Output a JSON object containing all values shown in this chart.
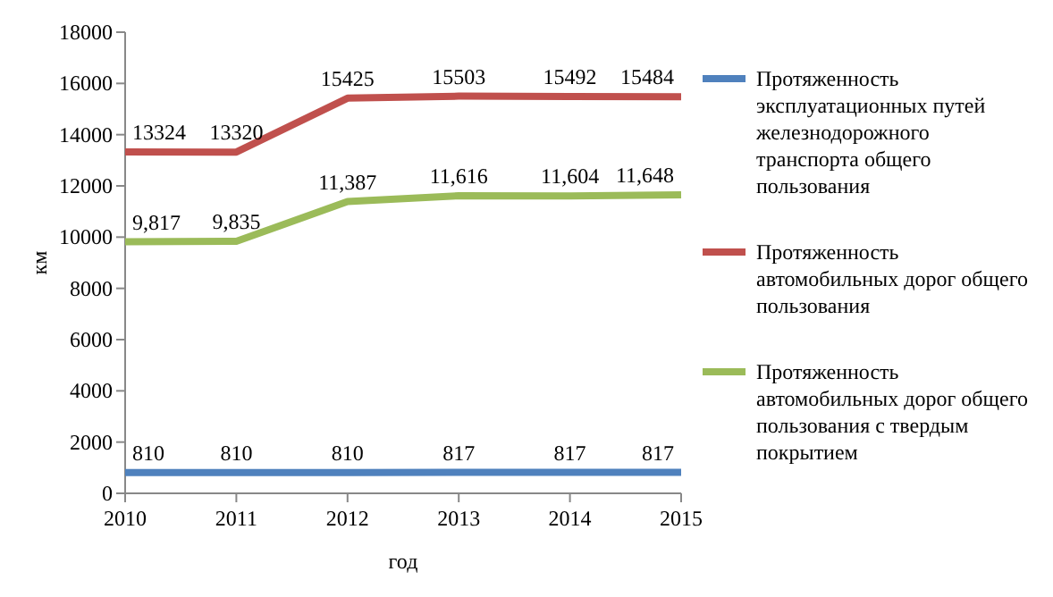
{
  "chart_data": {
    "type": "line",
    "xlabel": "год",
    "ylabel": "км",
    "x": [
      2010,
      2011,
      2012,
      2013,
      2014,
      2015
    ],
    "xlim": [
      2010,
      2015
    ],
    "xticks": [
      2010,
      2011,
      2012,
      2013,
      2014,
      2015
    ],
    "ylim": [
      0,
      18000
    ],
    "yticks": [
      0,
      2000,
      4000,
      6000,
      8000,
      10000,
      12000,
      14000,
      16000,
      18000
    ],
    "grid": false,
    "legend": "right",
    "marker": "none",
    "series": [
      {
        "name": "Протяженность эксплуатационных путей железнодорожного транспорта общего пользования",
        "color": "#4f81bd",
        "values": [
          810,
          810,
          810,
          817,
          817,
          817
        ],
        "value_labels": [
          "810",
          "810",
          "810",
          "817",
          "817",
          "817"
        ]
      },
      {
        "name": "Протяженность автомобильных дорог общего пользования",
        "color": "#c0504d",
        "values": [
          13324,
          13320,
          15425,
          15503,
          15492,
          15484
        ],
        "value_labels": [
          "13324",
          "13320",
          "15425",
          "15503",
          "15492",
          "15484"
        ]
      },
      {
        "name": "Протяженность автомобильных дорог общего пользования с твердым покрытием",
        "color": "#9bbb59",
        "values": [
          9817,
          9835,
          11387,
          11616,
          11604,
          11648
        ],
        "value_labels": [
          "9,817",
          "9,835",
          "11,387",
          "11,616",
          "11,604",
          "11,648"
        ]
      }
    ]
  }
}
